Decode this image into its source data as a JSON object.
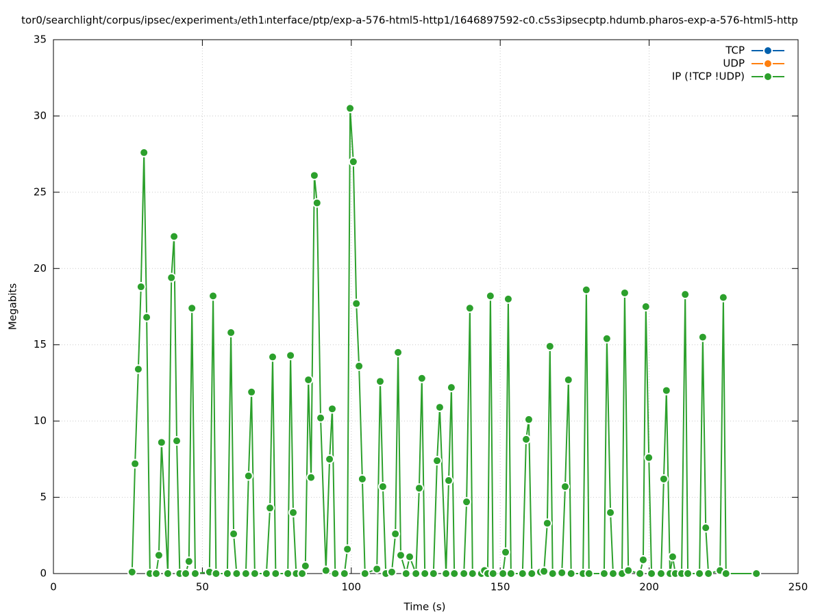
{
  "chart_data": {
    "type": "line",
    "title": "tor0/searchlight/corpus/ipsec/experiment₃/eth1ᵢnterface/ptp/exp-a-576-html5-http1/1646897592-c0.c5s3ipsecptp.hdumb.pharos-exp-a-576-html5-http",
    "x_label": "Time (s)",
    "y_label": "Megabits",
    "xlim": [
      0,
      250
    ],
    "xticks": [
      0,
      50,
      100,
      150,
      200,
      250
    ],
    "ylim": [
      0,
      35
    ],
    "yticks": [
      0,
      5,
      10,
      15,
      20,
      25,
      30,
      35
    ],
    "grid": true,
    "legend": "top-right",
    "series": [
      {
        "name": "TCP",
        "color": "#0060ad",
        "x": [],
        "values": []
      },
      {
        "name": "UDP",
        "color": "#ff7f0e",
        "x": [],
        "values": []
      },
      {
        "name": "IP (!TCP  !UDP)",
        "color": "#2ca02c",
        "x": [
          26.4,
          27.4,
          28.5,
          29.4,
          30.4,
          31.3,
          32.4,
          34.5,
          35.4,
          36.3,
          38.4,
          39.6,
          40.5,
          41.4,
          42.4,
          44.4,
          45.5,
          46.5,
          47.6,
          52.4,
          53.6,
          54.6,
          58.4,
          59.6,
          60.5,
          61.5,
          64.6,
          65.5,
          66.5,
          67.6,
          71.5,
          72.7,
          73.6,
          74.6,
          78.7,
          79.6,
          80.5,
          81.5,
          83.5,
          84.6,
          85.6,
          86.5,
          87.6,
          88.5,
          89.7,
          91.5,
          92.7,
          93.6,
          94.6,
          97.7,
          98.7,
          99.6,
          100.7,
          101.7,
          102.6,
          103.7,
          104.6,
          108.6,
          109.7,
          110.6,
          111.6,
          113.6,
          114.8,
          115.7,
          116.6,
          118.4,
          119.6,
          121.7,
          122.8,
          123.7,
          124.7,
          127.6,
          128.8,
          129.7,
          131.8,
          132.7,
          133.6,
          134.6,
          137.8,
          138.7,
          139.8,
          140.7,
          143.7,
          144.7,
          145.8,
          146.7,
          147.6,
          150.9,
          151.8,
          152.7,
          153.6,
          157.5,
          158.7,
          159.6,
          160.6,
          163.5,
          164.7,
          165.8,
          166.7,
          167.6,
          170.7,
          171.8,
          172.9,
          173.8,
          177.8,
          178.9,
          179.8,
          184.9,
          185.8,
          187.0,
          187.9,
          190.9,
          191.8,
          193.0,
          196.9,
          198.0,
          198.9,
          199.9,
          200.8,
          204.0,
          204.9,
          205.8,
          207.0,
          207.9,
          208.8,
          210.9,
          212.1,
          213.0,
          216.9,
          218.0,
          219.0,
          219.9,
          223.8,
          224.9,
          225.8,
          236.0
        ],
        "values": [
          0.1,
          7.2,
          13.4,
          18.8,
          27.6,
          16.8,
          0,
          0,
          1.2,
          8.6,
          0,
          19.4,
          22.1,
          8.7,
          0,
          0,
          0.8,
          17.4,
          0,
          0.1,
          18.2,
          0,
          0,
          15.8,
          2.6,
          0,
          0,
          6.4,
          11.9,
          0,
          0,
          4.3,
          14.2,
          0,
          0,
          14.3,
          4.0,
          0,
          0,
          0.5,
          12.7,
          6.3,
          26.1,
          24.3,
          10.2,
          0.2,
          7.5,
          10.8,
          0,
          0,
          1.6,
          30.5,
          27.0,
          17.7,
          13.6,
          6.2,
          0,
          0.3,
          12.6,
          5.7,
          0,
          0.1,
          2.6,
          14.5,
          1.2,
          0,
          1.1,
          0,
          5.6,
          12.8,
          0,
          0,
          7.4,
          10.9,
          0,
          6.1,
          12.2,
          0,
          0,
          4.7,
          17.4,
          0,
          0,
          0.2,
          0,
          18.2,
          0,
          0,
          1.4,
          18.0,
          0,
          0,
          8.8,
          10.1,
          0,
          0.1,
          0.15,
          3.3,
          14.9,
          0,
          0.05,
          5.7,
          12.7,
          0,
          0,
          18.6,
          0,
          0,
          15.4,
          4.0,
          0,
          0,
          18.4,
          0.2,
          0,
          0.9,
          17.5,
          7.6,
          0,
          0,
          6.2,
          12.0,
          0,
          1.1,
          0,
          0,
          18.3,
          0,
          0,
          15.5,
          3.0,
          0,
          0.2,
          18.1,
          0,
          0
        ]
      }
    ]
  }
}
